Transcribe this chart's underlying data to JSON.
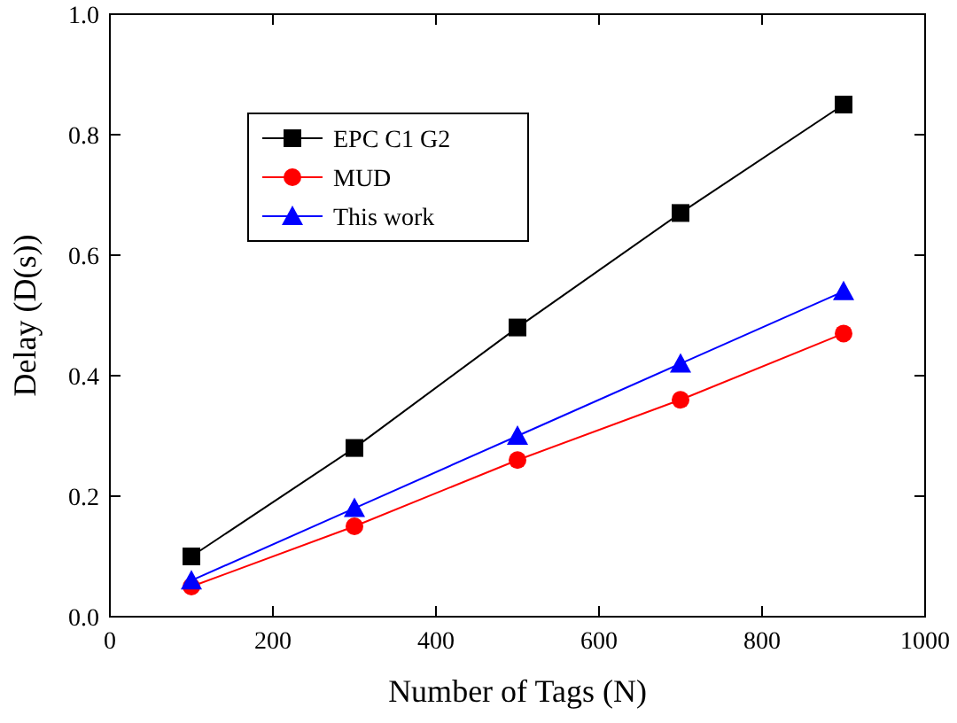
{
  "chart_data": {
    "type": "line",
    "xlabel": "Number of Tags (N)",
    "ylabel": "Delay (D(s))",
    "x": [
      100,
      300,
      500,
      700,
      900
    ],
    "xlim": [
      0,
      1000
    ],
    "xticks": [
      0,
      200,
      400,
      600,
      800,
      1000
    ],
    "ylim": [
      0,
      1.0
    ],
    "yticks": [
      {
        "value": 0,
        "label": "0.0"
      },
      0.2,
      0.4,
      0.6,
      0.8,
      {
        "value": 1,
        "label": "1.0"
      }
    ],
    "legend": "top left",
    "line_style": "solid",
    "series": [
      {
        "name": "EPC C1 G2",
        "color": "#000000",
        "marker": "square",
        "values": [
          0.1,
          0.28,
          0.48,
          0.67,
          0.85
        ]
      },
      {
        "name": "MUD",
        "color": "#ff0000",
        "marker": "circle",
        "values": [
          0.05,
          0.15,
          0.26,
          0.36,
          0.47
        ]
      },
      {
        "name": "This work",
        "color": "#0000ff",
        "marker": "triangle",
        "values": [
          0.06,
          0.18,
          0.3,
          0.42,
          0.54
        ]
      }
    ]
  }
}
